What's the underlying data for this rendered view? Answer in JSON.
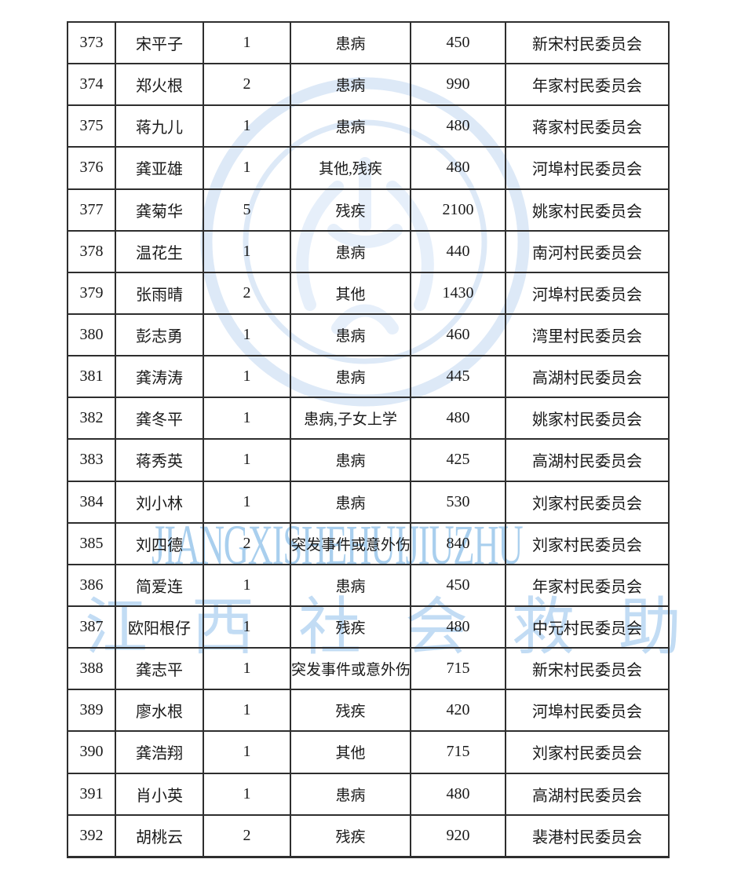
{
  "colors": {
    "ink": "#1a1a1a",
    "grid_line": "#2e2e2e",
    "wm_seal": "#dde9f7",
    "wm_seal_inner": "#e6effa",
    "wm_en": "#a9cfee",
    "wm_cn": "#c2dcf4"
  },
  "watermarks": {
    "en_text": "JIANGXISHEHUIJIUZHU",
    "cn_text": "江西社会救助"
  },
  "table": {
    "rows": [
      [
        "373",
        "宋平子",
        "1",
        "患病",
        "450",
        "新宋村民委员会"
      ],
      [
        "374",
        "郑火根",
        "2",
        "患病",
        "990",
        "年家村民委员会"
      ],
      [
        "375",
        "蒋九儿",
        "1",
        "患病",
        "480",
        "蒋家村民委员会"
      ],
      [
        "376",
        "龚亚雄",
        "1",
        "其他,残疾",
        "480",
        "河埠村民委员会"
      ],
      [
        "377",
        "龚菊华",
        "5",
        "残疾",
        "2100",
        "姚家村民委员会"
      ],
      [
        "378",
        "温花生",
        "1",
        "患病",
        "440",
        "南河村民委员会"
      ],
      [
        "379",
        "张雨晴",
        "2",
        "其他",
        "1430",
        "河埠村民委员会"
      ],
      [
        "380",
        "彭志勇",
        "1",
        "患病",
        "460",
        "湾里村民委员会"
      ],
      [
        "381",
        "龚涛涛",
        "1",
        "患病",
        "445",
        "高湖村民委员会"
      ],
      [
        "382",
        "龚冬平",
        "1",
        "患病,子女上学",
        "480",
        "姚家村民委员会"
      ],
      [
        "383",
        "蒋秀英",
        "1",
        "患病",
        "425",
        "高湖村民委员会"
      ],
      [
        "384",
        "刘小林",
        "1",
        "患病",
        "530",
        "刘家村民委员会"
      ],
      [
        "385",
        "刘四德",
        "2",
        "突发事件或意外伤",
        "840",
        "刘家村民委员会"
      ],
      [
        "386",
        "简爱连",
        "1",
        "患病",
        "450",
        "年家村民委员会"
      ],
      [
        "387",
        "欧阳根仔",
        "1",
        "残疾",
        "480",
        "中元村民委员会"
      ],
      [
        "388",
        "龚志平",
        "1",
        "突发事件或意外伤",
        "715",
        "新宋村民委员会"
      ],
      [
        "389",
        "廖水根",
        "1",
        "残疾",
        "420",
        "河埠村民委员会"
      ],
      [
        "390",
        "龚浩翔",
        "1",
        "其他",
        "715",
        "刘家村民委员会"
      ],
      [
        "391",
        "肖小英",
        "1",
        "患病",
        "480",
        "高湖村民委员会"
      ],
      [
        "392",
        "胡桃云",
        "2",
        "残疾",
        "920",
        "裴港村民委员会"
      ]
    ]
  }
}
